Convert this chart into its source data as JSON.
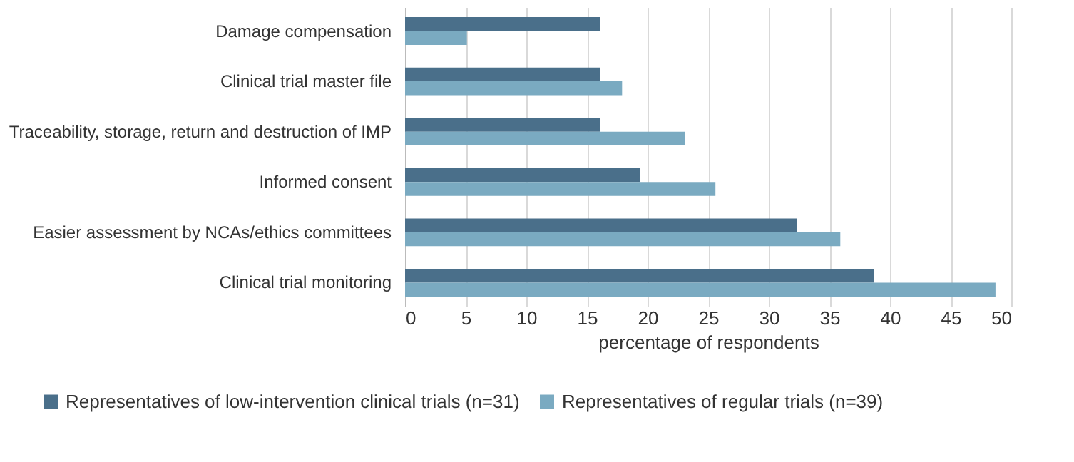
{
  "chart_data": {
    "type": "bar",
    "orientation": "horizontal",
    "xlabel": "percentage of respondents",
    "categories": [
      "Damage compensation",
      "Clinical trial master file",
      "Traceability, storage, return and destruction of IMP",
      "Informed consent",
      "Easier assessment by NCAs/ethics committees",
      "Clinical trial monitoring"
    ],
    "series": [
      {
        "name": "Representatives of low-intervention clinical trials (n=31)",
        "color": "#4a6f8a",
        "values": [
          16.1,
          16.1,
          16.1,
          19.4,
          32.3,
          38.7
        ]
      },
      {
        "name": "Representatives of regular trials (n=39)",
        "color": "#7aaac1",
        "values": [
          5.1,
          17.9,
          23.1,
          25.6,
          35.9,
          48.7
        ]
      }
    ],
    "xlim": [
      0,
      50
    ],
    "xticks": [
      0,
      5,
      10,
      15,
      20,
      25,
      30,
      35,
      40,
      45,
      50
    ],
    "grid": "x",
    "legend": "bottom"
  }
}
